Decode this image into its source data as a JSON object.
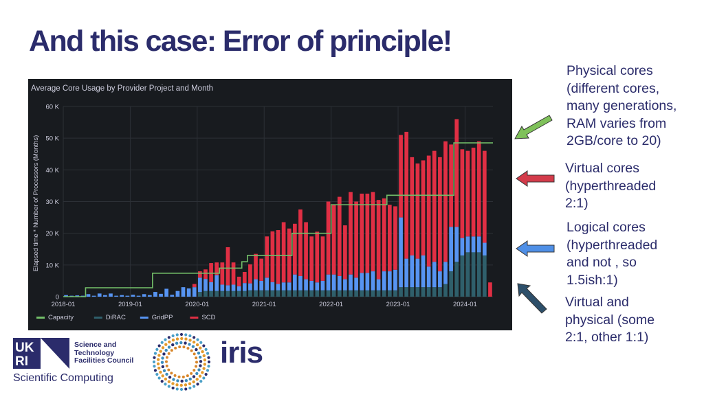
{
  "slide": {
    "title": "And this case: Error of principle!"
  },
  "annotations": [
    {
      "text": "Physical cores\n(different cores,\nmany generations,\nRAM varies from\n2GB/core to 20)",
      "arrow_color": "#7fc15a"
    },
    {
      "text": "Virtual cores\n(hyperthreaded\n2:1)",
      "arrow_color": "#d33b4a"
    },
    {
      "text": "Logical cores\n(hyperthreaded\nand not , so\n1.5ish:1)",
      "arrow_color": "#4f8fe6"
    },
    {
      "text": "Virtual and\nphysical (some\n2:1, other 1:1)",
      "arrow_color": "#2d4f6a"
    }
  ],
  "logos": {
    "ukri_caption": "Scientific Computing",
    "stfc_text": "Science and\nTechnology\nFacilities Council",
    "iris_text": "iris"
  },
  "chart_data": {
    "type": "bar",
    "stacked": true,
    "title": "Average Core Usage by Provider Project and Month",
    "ylabel": "Elapsed time * Number of Processors (Months)",
    "xlabel": "",
    "ylim": [
      0,
      60000
    ],
    "yticks": [
      0,
      10000,
      20000,
      30000,
      40000,
      50000,
      60000
    ],
    "ytick_labels": [
      "0",
      "10 K",
      "20 K",
      "30 K",
      "40 K",
      "50 K",
      "60 K"
    ],
    "xtick_labels": [
      "2018-01",
      "2019-01",
      "2020-01",
      "2021-01",
      "2022-01",
      "2023-01",
      "2024-01"
    ],
    "xtick_month_index": [
      0,
      12,
      24,
      36,
      48,
      60,
      72
    ],
    "start_month": "2018-01",
    "months_count": 77,
    "grid": true,
    "legend_position": "bottom-left",
    "colors": {
      "background": "#181b1f",
      "grid": "#2c3036",
      "text": "#ccccdc",
      "Capacity": "#73bf69",
      "DiRAC": "#2f5f6b",
      "GridPP": "#5794f2",
      "SCD": "#e02f44"
    },
    "series": [
      {
        "name": "DiRAC",
        "values": [
          0,
          0,
          0,
          0,
          0,
          0,
          0,
          0,
          0,
          0,
          0,
          0,
          0,
          0,
          0,
          0,
          0,
          0,
          0,
          0,
          0,
          0,
          0,
          0,
          1500,
          1800,
          1800,
          1800,
          1800,
          1800,
          1800,
          1800,
          1800,
          2000,
          2000,
          2000,
          2000,
          2000,
          2000,
          2000,
          2000,
          2000,
          2000,
          2000,
          2000,
          2000,
          2000,
          2000,
          2000,
          2000,
          2000,
          2000,
          2000,
          2000,
          2000,
          2000,
          2000,
          2000,
          2000,
          2000,
          3000,
          3000,
          3000,
          3000,
          3000,
          3000,
          3000,
          3000,
          4000,
          8000,
          11000,
          13000,
          14000,
          14000,
          14000,
          13000,
          0
        ]
      },
      {
        "name": "GridPP",
        "values": [
          500,
          300,
          400,
          300,
          800,
          300,
          1000,
          500,
          1000,
          300,
          500,
          300,
          600,
          300,
          800,
          500,
          1500,
          900,
          2500,
          600,
          1800,
          3000,
          2600,
          3000,
          4500,
          3800,
          2800,
          5000,
          2000,
          1800,
          2000,
          1500,
          2500,
          2200,
          3500,
          3000,
          4000,
          2600,
          2000,
          2500,
          2500,
          5000,
          4500,
          3500,
          3000,
          2500,
          3000,
          5000,
          5000,
          4500,
          3500,
          5000,
          4000,
          5500,
          5500,
          6000,
          3500,
          6000,
          6000,
          6500,
          22000,
          9000,
          10000,
          9000,
          10000,
          6500,
          8000,
          5000,
          7000,
          14000,
          11000,
          5500,
          5000,
          5000,
          5000,
          4000,
          0
        ]
      },
      {
        "name": "SCD",
        "values": [
          0,
          0,
          0,
          0,
          0,
          0,
          0,
          0,
          0,
          0,
          0,
          0,
          0,
          0,
          0,
          0,
          0,
          0,
          0,
          0,
          0,
          0,
          0,
          1000,
          2000,
          3000,
          6000,
          4000,
          7000,
          12000,
          7000,
          3000,
          3500,
          6000,
          8000,
          7000,
          13000,
          16000,
          17000,
          19000,
          17000,
          16000,
          21000,
          18000,
          14000,
          16000,
          14000,
          23000,
          22000,
          25000,
          17000,
          26000,
          24000,
          25000,
          25000,
          25000,
          25000,
          23000,
          21000,
          20000,
          26000,
          40000,
          31000,
          30000,
          30000,
          35000,
          35000,
          36000,
          38000,
          26000,
          34000,
          28000,
          27000,
          28000,
          30000,
          29000,
          4500
        ]
      },
      {
        "name": "Capacity",
        "type": "line-step",
        "values": [
          0,
          0,
          0,
          0,
          2800,
          2800,
          2800,
          2800,
          2800,
          2800,
          2800,
          2800,
          2800,
          2800,
          2800,
          2800,
          7400,
          7400,
          7400,
          7400,
          7400,
          7400,
          7400,
          7400,
          7400,
          7400,
          7400,
          7400,
          9000,
          9000,
          9000,
          9000,
          11000,
          13000,
          13000,
          13000,
          13000,
          13000,
          13000,
          13000,
          13000,
          20000,
          20000,
          20000,
          20000,
          20000,
          20000,
          20000,
          29000,
          29000,
          29000,
          29000,
          29000,
          29000,
          29000,
          29000,
          29000,
          29000,
          32000,
          32000,
          32000,
          32000,
          32000,
          32000,
          32000,
          32000,
          32000,
          32000,
          32000,
          32000,
          48500,
          48500,
          48500,
          48500,
          48500,
          48500,
          48500
        ]
      }
    ],
    "legend": [
      "Capacity",
      "DiRAC",
      "GridPP",
      "SCD"
    ]
  }
}
